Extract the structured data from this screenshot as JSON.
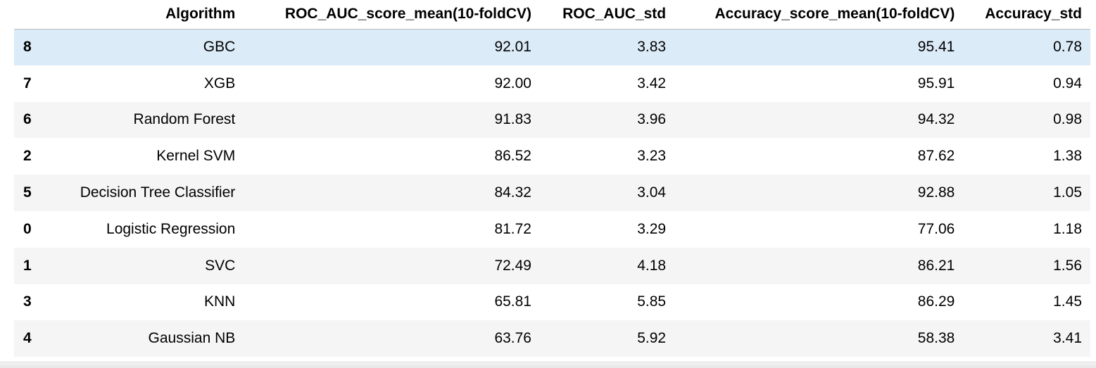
{
  "table": {
    "columns": [
      "",
      "Algorithm",
      "ROC_AUC_score_mean(10-foldCV)",
      "ROC_AUC_std",
      "Accuracy_score_mean(10-foldCV)",
      "Accuracy_std"
    ],
    "rows": [
      {
        "index": "8",
        "algorithm": "GBC",
        "roc_auc_mean": "92.01",
        "roc_auc_std": "3.83",
        "acc_mean": "95.41",
        "acc_std": "0.78"
      },
      {
        "index": "7",
        "algorithm": "XGB",
        "roc_auc_mean": "92.00",
        "roc_auc_std": "3.42",
        "acc_mean": "95.91",
        "acc_std": "0.94"
      },
      {
        "index": "6",
        "algorithm": "Random Forest",
        "roc_auc_mean": "91.83",
        "roc_auc_std": "3.96",
        "acc_mean": "94.32",
        "acc_std": "0.98"
      },
      {
        "index": "2",
        "algorithm": "Kernel SVM",
        "roc_auc_mean": "86.52",
        "roc_auc_std": "3.23",
        "acc_mean": "87.62",
        "acc_std": "1.38"
      },
      {
        "index": "5",
        "algorithm": "Decision Tree Classifier",
        "roc_auc_mean": "84.32",
        "roc_auc_std": "3.04",
        "acc_mean": "92.88",
        "acc_std": "1.05"
      },
      {
        "index": "0",
        "algorithm": "Logistic Regression",
        "roc_auc_mean": "81.72",
        "roc_auc_std": "3.29",
        "acc_mean": "77.06",
        "acc_std": "1.18"
      },
      {
        "index": "1",
        "algorithm": "SVC",
        "roc_auc_mean": "72.49",
        "roc_auc_std": "4.18",
        "acc_mean": "86.21",
        "acc_std": "1.56"
      },
      {
        "index": "3",
        "algorithm": "KNN",
        "roc_auc_mean": "65.81",
        "roc_auc_std": "5.85",
        "acc_mean": "86.29",
        "acc_std": "1.45"
      },
      {
        "index": "4",
        "algorithm": "Gaussian NB",
        "roc_auc_mean": "63.76",
        "roc_auc_std": "5.92",
        "acc_mean": "58.38",
        "acc_std": "3.41"
      }
    ],
    "highlighted_row_index": 0
  },
  "colors": {
    "highlight_row": "#dcebf8",
    "striped_row": "#f5f5f5",
    "header_border": "#bdbdbd"
  }
}
